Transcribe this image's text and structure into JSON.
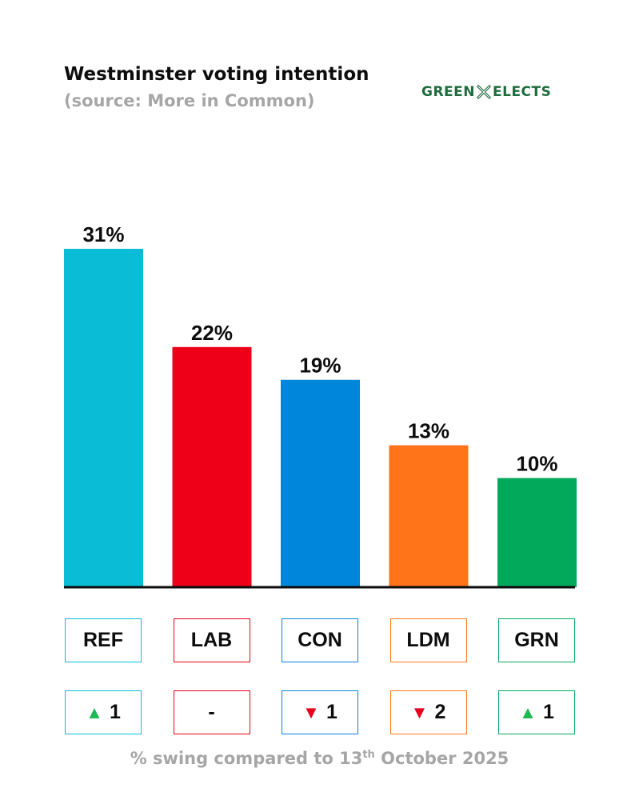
{
  "header": {
    "title": "Westminster voting intention",
    "subtitle": "(source: More in Common)",
    "logo_left": "GREEN",
    "logo_right": "ELECTS"
  },
  "chart_data": {
    "type": "bar",
    "categories": [
      "REF",
      "LAB",
      "CON",
      "LDM",
      "GRN"
    ],
    "values": [
      31,
      22,
      19,
      13,
      10
    ],
    "value_labels": [
      "31%",
      "22%",
      "19%",
      "13%",
      "10%"
    ],
    "colors": [
      "#0bbcd6",
      "#ee0018",
      "#0087dc",
      "#ff7419",
      "#02a95b"
    ],
    "swing": [
      {
        "direction": "up",
        "text": "1"
      },
      {
        "direction": "none",
        "text": "-"
      },
      {
        "direction": "down",
        "text": "1"
      },
      {
        "direction": "down",
        "text": "2"
      },
      {
        "direction": "up",
        "text": "1"
      }
    ],
    "swing_colors": {
      "up": "#1db954",
      "down": "#e8001c"
    },
    "ylim": [
      0,
      31
    ],
    "grid": false,
    "legend": "none"
  },
  "footer": {
    "text_before": "% swing compared to 13",
    "sup": "th",
    "text_after": " October 2025"
  }
}
